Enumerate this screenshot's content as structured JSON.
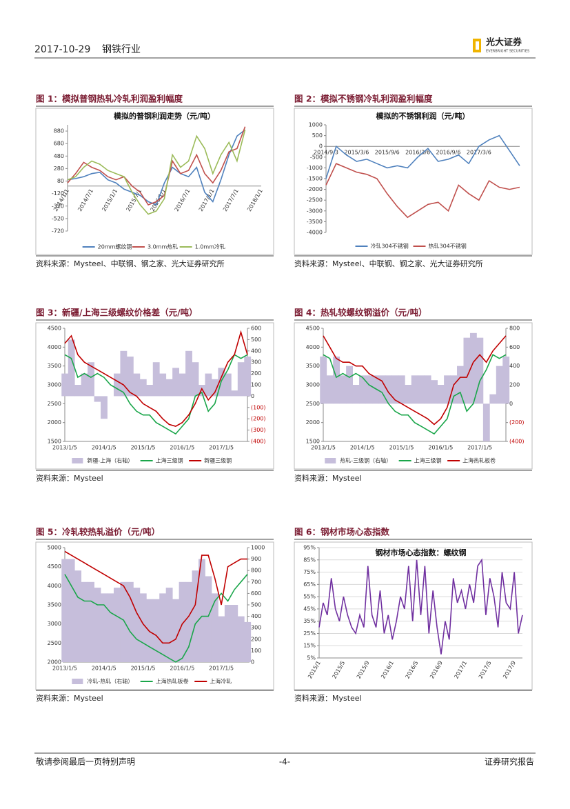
{
  "header": {
    "date": "2017-10-29",
    "industry": "钢铁行业",
    "logo_cn": "光大证券",
    "logo_en": "EVERBRIGHT SECURITIES"
  },
  "chart_data": [
    {
      "type": "line",
      "caption": "图 1：模拟普钢热轧冷轧利润盈利幅度",
      "title": "模拟的普钢利润走势（元/吨）",
      "source": "资料来源：Mysteel、中联钢、钢之家、光大证券研究所",
      "x_axis_at_zero": true,
      "categories": [
        "2014/1/1",
        null,
        null,
        "2014/7/1",
        null,
        null,
        "2015/1/1",
        null,
        null,
        "2015/7/1",
        null,
        null,
        "2016/1/1",
        null,
        null,
        "2016/7/1",
        null,
        null,
        "2017/1/1",
        null,
        null,
        "2017/7/1",
        null,
        null,
        "2018/1/1"
      ],
      "series": [
        {
          "name": "20mm螺纹钢",
          "color": "#4f81bd",
          "values": [
            100,
            120,
            150,
            200,
            220,
            100,
            50,
            -50,
            -100,
            -150,
            -250,
            -300,
            50,
            300,
            200,
            150,
            300,
            -100,
            -250,
            100,
            500,
            800,
            900,
            null,
            null
          ]
        },
        {
          "name": "3.0mm热轧",
          "color": "#c0504d",
          "values": [
            50,
            200,
            380,
            300,
            250,
            150,
            100,
            150,
            0,
            -100,
            -300,
            -250,
            -150,
            400,
            200,
            250,
            500,
            200,
            50,
            250,
            550,
            600,
            950,
            null,
            null
          ]
        },
        {
          "name": "1.0mm冷轧",
          "color": "#9bbb59",
          "values": [
            100,
            150,
            300,
            400,
            350,
            250,
            200,
            150,
            -100,
            -300,
            -450,
            -400,
            -200,
            500,
            300,
            400,
            800,
            600,
            200,
            500,
            700,
            400,
            900,
            null,
            null
          ]
        }
      ],
      "ylim": [
        -720,
        980
      ],
      "yticks": [
        880,
        680,
        480,
        280,
        80,
        -120,
        -320,
        -520,
        -720
      ]
    },
    {
      "type": "line",
      "caption": "图 2：模拟不锈钢冷轧利润盈利幅度",
      "title": "模拟的不锈钢利润（元/吨）",
      "source": "资料来源：Mysteel、中联钢、钢之家、光大证券研究所",
      "x_axis_at_zero": true,
      "categories": [
        "2014/9/3",
        null,
        null,
        "2015/3/6",
        null,
        null,
        "2015/9/6",
        null,
        null,
        "2016/3/6",
        null,
        null,
        "2016/9/6",
        null,
        null,
        "2017/3/6",
        null,
        null,
        null,
        null
      ],
      "series": [
        {
          "name": "冷轧304不锈钢",
          "color": "#4f81bd",
          "values": [
            -1500,
            0,
            -400,
            -700,
            -600,
            -800,
            -1000,
            -900,
            -1000,
            -500,
            -100,
            -700,
            -600,
            -400,
            -800,
            0,
            300,
            500,
            -200,
            -900
          ]
        },
        {
          "name": "热轧304不锈钢",
          "color": "#c0504d",
          "values": [
            -1800,
            -800,
            -1000,
            -1200,
            -1300,
            -1500,
            -2200,
            -2800,
            -3300,
            -3000,
            -2700,
            -2600,
            -3000,
            -1800,
            -2200,
            -2500,
            -1600,
            -1900,
            -2000,
            -1900
          ]
        }
      ],
      "ylim": [
        -4000,
        1000
      ],
      "yticks": [
        1000,
        500,
        0,
        -500,
        -1000,
        -1500,
        -2000,
        -2500,
        -3000,
        -3500,
        -4000
      ]
    },
    {
      "type": "line",
      "caption": "图 3：新疆/上海三级螺纹价格差（元/吨）",
      "source": "资料来源：Mysteel",
      "y2_negative_color": "#c00000",
      "categories": [
        "2013/1/5",
        null,
        null,
        null,
        null,
        null,
        "2014/1/5",
        null,
        null,
        null,
        null,
        null,
        "2015/1/5",
        null,
        null,
        null,
        null,
        null,
        "2016/1/5",
        null,
        null,
        null,
        null,
        null,
        "2017/1/5",
        null,
        null,
        null,
        null
      ],
      "series": [
        {
          "name": "新疆-上海（右轴）",
          "color": "#c6bedb",
          "style": "area",
          "axis": "y2",
          "values": [
            200,
            500,
            100,
            200,
            300,
            -50,
            -200,
            0,
            200,
            400,
            350,
            200,
            150,
            100,
            300,
            200,
            150,
            250,
            200,
            400,
            300,
            100,
            200,
            150,
            250,
            200,
            50,
            300,
            350
          ]
        },
        {
          "name": "上海三级钢",
          "color": "#1aa64a",
          "values": [
            3800,
            3700,
            3200,
            3300,
            3200,
            3300,
            3200,
            3000,
            2900,
            2800,
            2500,
            2300,
            2200,
            2200,
            2000,
            1900,
            1800,
            1700,
            1900,
            2100,
            2700,
            2800,
            2300,
            2500,
            3100,
            3400,
            3800,
            3700,
            3800
          ]
        },
        {
          "name": "新疆三级钢",
          "color": "#c00000",
          "values": [
            4100,
            4300,
            3800,
            3600,
            3500,
            3400,
            3300,
            3200,
            3100,
            3000,
            2800,
            2700,
            2500,
            2400,
            2300,
            2100,
            1950,
            1900,
            2000,
            2200,
            2500,
            2900,
            2600,
            2800,
            3200,
            3600,
            3800,
            4400,
            3800
          ]
        }
      ],
      "ylim": [
        1500,
        4500
      ],
      "yticks": [
        4500,
        4000,
        3500,
        3000,
        2500,
        2000,
        1500
      ],
      "y2lim": [
        -400,
        600
      ],
      "y2ticks": [
        600,
        500,
        400,
        300,
        200,
        100,
        0,
        {
          "value": -100,
          "label": "(100)"
        },
        {
          "value": -200,
          "label": "(200)"
        },
        {
          "value": -300,
          "label": "(300)"
        },
        {
          "value": -400,
          "label": "(400)"
        }
      ]
    },
    {
      "type": "line",
      "caption": "图 4：热轧较螺纹钢溢价（元/吨）",
      "source": "资料来源：Mysteel",
      "y2_negative_color": "#c00000",
      "categories": [
        "2013/1/5",
        null,
        null,
        null,
        null,
        null,
        "2014/1/5",
        null,
        null,
        null,
        null,
        null,
        "2015/1/5",
        null,
        null,
        null,
        null,
        null,
        "2016/1/5",
        null,
        null,
        null,
        null,
        null,
        "2017/1/5",
        null,
        null,
        null,
        null
      ],
      "series": [
        {
          "name": "热轧-三级钢（右轴）",
          "color": "#c6bedb",
          "style": "area",
          "axis": "y2",
          "values": [
            500,
            300,
            500,
            300,
            400,
            200,
            300,
            300,
            300,
            300,
            300,
            300,
            300,
            200,
            300,
            300,
            300,
            250,
            200,
            300,
            300,
            400,
            700,
            750,
            700,
            -400,
            100,
            400,
            500
          ]
        },
        {
          "name": "上海三级钢",
          "color": "#1aa64a",
          "values": [
            3800,
            3700,
            3200,
            3300,
            3200,
            3300,
            3200,
            3000,
            2900,
            2800,
            2500,
            2300,
            2200,
            2200,
            2000,
            1900,
            1800,
            1700,
            1900,
            2100,
            2700,
            2800,
            2300,
            2500,
            3100,
            3400,
            3800,
            3700,
            3800
          ]
        },
        {
          "name": "上海热轧板卷",
          "color": "#c00000",
          "values": [
            4300,
            4000,
            3700,
            3600,
            3600,
            3500,
            3500,
            3300,
            3200,
            3100,
            2800,
            2600,
            2500,
            2400,
            2300,
            2200,
            2100,
            1950,
            2100,
            2400,
            3000,
            3200,
            3200,
            3600,
            3800,
            3600,
            3900,
            4100,
            4300
          ]
        }
      ],
      "ylim": [
        1500,
        4500
      ],
      "yticks": [
        4500,
        4000,
        3500,
        3000,
        2500,
        2000,
        1500
      ],
      "y2lim": [
        -400,
        800
      ],
      "y2ticks": [
        800,
        600,
        400,
        200,
        0,
        {
          "value": -200,
          "label": "(200)"
        },
        {
          "value": -400,
          "label": "(400)"
        }
      ]
    },
    {
      "type": "line",
      "caption": "图 5：冷轧较热轧溢价（元/吨）",
      "source": "资料来源：Mysteel",
      "categories": [
        "2013/1/5",
        null,
        null,
        null,
        null,
        null,
        "2014/1/5",
        null,
        null,
        null,
        null,
        null,
        "2015/1/5",
        null,
        null,
        null,
        null,
        null,
        "2016/1/5",
        null,
        null,
        null,
        null,
        null,
        "2017/1/5",
        null,
        null,
        null,
        null
      ],
      "series": [
        {
          "name": "冷轧-热轧（右轴）",
          "color": "#c6bedb",
          "style": "area",
          "axis": "y2",
          "values": [
            900,
            900,
            800,
            700,
            700,
            650,
            600,
            600,
            650,
            700,
            700,
            650,
            600,
            550,
            550,
            600,
            650,
            550,
            700,
            700,
            800,
            900,
            750,
            600,
            400,
            500,
            500,
            400,
            350
          ]
        },
        {
          "name": "上海热轧板卷",
          "color": "#1aa64a",
          "values": [
            4300,
            4000,
            3700,
            3600,
            3600,
            3500,
            3500,
            3300,
            3200,
            3100,
            2800,
            2600,
            2500,
            2400,
            2300,
            2200,
            2100,
            2000,
            2100,
            2400,
            3000,
            3200,
            3200,
            3600,
            3800,
            3600,
            3900,
            4100,
            4300
          ]
        },
        {
          "name": "上海冷轧",
          "color": "#c00000",
          "values": [
            4900,
            4800,
            4700,
            4600,
            4500,
            4400,
            4300,
            4200,
            4100,
            4000,
            3700,
            3300,
            3000,
            2800,
            2700,
            2500,
            2500,
            2600,
            3000,
            3200,
            3500,
            4800,
            4800,
            4200,
            3500,
            4500,
            4600,
            4700,
            4700
          ]
        }
      ],
      "ylim": [
        2000,
        5000
      ],
      "yticks": [
        5000,
        4500,
        4000,
        3500,
        3000,
        2500,
        2000
      ],
      "y2lim": [
        0,
        1000
      ],
      "y2ticks": [
        1000,
        900,
        800,
        700,
        600,
        500,
        400,
        300,
        200,
        100,
        0
      ]
    },
    {
      "type": "line",
      "caption": "图 6：钢材市场心态指数",
      "title": "钢材市场心态指数：螺纹钢",
      "source": "资料来源：Mysteel",
      "grid": true,
      "categories": [
        "2015/1",
        null,
        null,
        null,
        null,
        null,
        "2015/5",
        null,
        null,
        null,
        null,
        null,
        "2015/9",
        null,
        null,
        null,
        null,
        null,
        "2016/1",
        null,
        null,
        null,
        null,
        null,
        "2016/5",
        null,
        null,
        null,
        null,
        null,
        "2016/9",
        null,
        null,
        null,
        null,
        null,
        "2017/1",
        null,
        null,
        null,
        null,
        null,
        "2017/5",
        null,
        null,
        null,
        null,
        null,
        "2017/9",
        null,
        null
      ],
      "series": [
        {
          "name": "钢材市场心态指数：螺纹钢",
          "color": "#7030a0",
          "values": [
            30,
            50,
            40,
            70,
            45,
            35,
            55,
            40,
            30,
            25,
            40,
            30,
            80,
            40,
            30,
            60,
            25,
            40,
            20,
            35,
            55,
            45,
            80,
            35,
            85,
            40,
            80,
            25,
            60,
            30,
            8,
            35,
            20,
            70,
            50,
            60,
            45,
            65,
            50,
            80,
            85,
            40,
            70,
            55,
            30,
            75,
            50,
            45,
            75,
            25,
            40
          ]
        }
      ],
      "ylim": [
        5,
        95
      ],
      "yticks": [
        {
          "value": 95,
          "label": "95%"
        },
        {
          "value": 85,
          "label": "85%"
        },
        {
          "value": 75,
          "label": "75%"
        },
        {
          "value": 65,
          "label": "65%"
        },
        {
          "value": 55,
          "label": "55%"
        },
        {
          "value": 45,
          "label": "45%"
        },
        {
          "value": 35,
          "label": "35%"
        },
        {
          "value": 25,
          "label": "25%"
        },
        {
          "value": 15,
          "label": "15%"
        },
        {
          "value": 5,
          "label": "5%"
        }
      ]
    }
  ],
  "footer": {
    "disclaimer": "敬请参阅最后一页特别声明",
    "page": "-4-",
    "label": "证券研究报告"
  }
}
